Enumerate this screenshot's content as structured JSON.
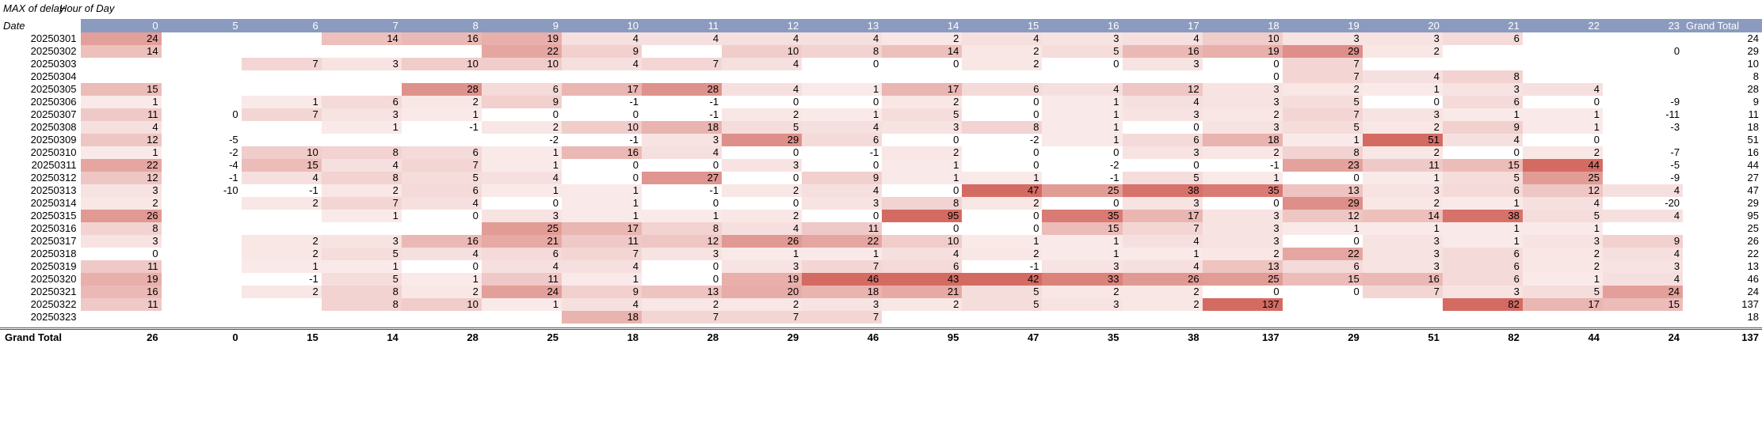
{
  "pivot": {
    "value_label": "MAX of delay",
    "column_label": "Hour of Day",
    "row_label": "Date",
    "grand_total_label": "Grand Total",
    "hours": [
      "0",
      "5",
      "6",
      "7",
      "8",
      "9",
      "10",
      "11",
      "12",
      "13",
      "14",
      "15",
      "16",
      "17",
      "18",
      "19",
      "20",
      "21",
      "22",
      "23"
    ],
    "rows": [
      {
        "date": "20250301",
        "values": [
          24,
          null,
          null,
          14,
          16,
          19,
          4,
          4,
          4,
          4,
          2,
          4,
          3,
          4,
          10,
          3,
          3,
          6,
          null,
          null
        ],
        "total": 24
      },
      {
        "date": "20250302",
        "values": [
          14,
          null,
          null,
          null,
          null,
          22,
          9,
          null,
          10,
          8,
          14,
          2,
          5,
          16,
          19,
          29,
          2,
          null,
          null,
          0
        ],
        "total": 29
      },
      {
        "date": "20250303",
        "values": [
          null,
          null,
          7,
          3,
          10,
          10,
          4,
          7,
          4,
          0,
          0,
          2,
          0,
          3,
          0,
          7,
          null,
          null,
          null,
          null
        ],
        "total": 10
      },
      {
        "date": "20250304",
        "values": [
          null,
          null,
          null,
          null,
          null,
          null,
          null,
          null,
          null,
          null,
          null,
          null,
          null,
          null,
          0,
          7,
          4,
          8,
          null,
          null
        ],
        "total": 8
      },
      {
        "date": "20250305",
        "values": [
          15,
          null,
          null,
          null,
          28,
          6,
          17,
          28,
          4,
          1,
          17,
          6,
          4,
          12,
          3,
          2,
          1,
          3,
          4,
          null
        ],
        "total": 28
      },
      {
        "date": "20250306",
        "values": [
          1,
          null,
          1,
          6,
          2,
          9,
          -1,
          -1,
          0,
          0,
          2,
          0,
          1,
          4,
          3,
          5,
          0,
          6,
          0,
          -9
        ],
        "total": 9
      },
      {
        "date": "20250307",
        "values": [
          11,
          0,
          7,
          3,
          1,
          0,
          0,
          -1,
          2,
          1,
          5,
          0,
          1,
          3,
          2,
          7,
          3,
          1,
          1,
          -11
        ],
        "total": 11
      },
      {
        "date": "20250308",
        "values": [
          4,
          null,
          null,
          1,
          -1,
          2,
          10,
          18,
          5,
          4,
          3,
          8,
          1,
          0,
          3,
          5,
          2,
          9,
          1,
          -3
        ],
        "total": 18
      },
      {
        "date": "20250309",
        "values": [
          12,
          -5,
          null,
          null,
          null,
          -2,
          -1,
          3,
          29,
          6,
          0,
          -2,
          1,
          6,
          18,
          1,
          51,
          4,
          0,
          null
        ],
        "total": 51
      },
      {
        "date": "20250310",
        "values": [
          1,
          -2,
          10,
          8,
          6,
          1,
          16,
          4,
          0,
          -1,
          2,
          0,
          0,
          3,
          2,
          8,
          2,
          0,
          2,
          -7
        ],
        "total": 16
      },
      {
        "date": "20250311",
        "values": [
          22,
          -4,
          15,
          4,
          7,
          1,
          0,
          0,
          3,
          0,
          1,
          0,
          -2,
          0,
          -1,
          23,
          11,
          15,
          44,
          -5
        ],
        "total": 44
      },
      {
        "date": "20250312",
        "values": [
          12,
          -1,
          4,
          8,
          5,
          4,
          0,
          27,
          0,
          9,
          1,
          1,
          -1,
          5,
          1,
          0,
          1,
          5,
          25,
          -9
        ],
        "total": 27
      },
      {
        "date": "20250313",
        "values": [
          3,
          -10,
          -1,
          2,
          6,
          1,
          1,
          -1,
          2,
          4,
          0,
          47,
          25,
          38,
          35,
          13,
          3,
          6,
          12,
          4
        ],
        "total": 47
      },
      {
        "date": "20250314",
        "values": [
          2,
          null,
          2,
          7,
          4,
          0,
          1,
          0,
          0,
          3,
          8,
          2,
          0,
          3,
          0,
          29,
          2,
          1,
          4,
          -20
        ],
        "total": 29
      },
      {
        "date": "20250315",
        "values": [
          26,
          null,
          null,
          1,
          0,
          3,
          1,
          1,
          2,
          0,
          95,
          0,
          35,
          17,
          3,
          12,
          14,
          38,
          5,
          4
        ],
        "total": 95
      },
      {
        "date": "20250316",
        "values": [
          8,
          null,
          null,
          null,
          null,
          25,
          17,
          8,
          4,
          11,
          0,
          0,
          15,
          7,
          3,
          1,
          1,
          1,
          1,
          null
        ],
        "total": 25
      },
      {
        "date": "20250317",
        "values": [
          3,
          null,
          2,
          3,
          16,
          21,
          11,
          12,
          26,
          22,
          10,
          1,
          1,
          4,
          3,
          0,
          3,
          1,
          3,
          9
        ],
        "total": 26
      },
      {
        "date": "20250318",
        "values": [
          0,
          null,
          2,
          5,
          4,
          6,
          7,
          3,
          1,
          1,
          4,
          2,
          1,
          1,
          2,
          22,
          3,
          6,
          2,
          4
        ],
        "total": 22
      },
      {
        "date": "20250319",
        "values": [
          11,
          null,
          1,
          1,
          0,
          4,
          4,
          0,
          3,
          7,
          6,
          -1,
          3,
          4,
          13,
          6,
          3,
          6,
          2,
          3
        ],
        "total": 13
      },
      {
        "date": "20250320",
        "values": [
          19,
          null,
          -1,
          5,
          1,
          11,
          1,
          0,
          19,
          46,
          43,
          42,
          33,
          26,
          25,
          15,
          16,
          6,
          1,
          4
        ],
        "total": 46
      },
      {
        "date": "20250321",
        "values": [
          16,
          null,
          2,
          8,
          2,
          24,
          9,
          13,
          20,
          18,
          21,
          5,
          2,
          2,
          0,
          0,
          7,
          3,
          5,
          24
        ],
        "total": 24
      },
      {
        "date": "20250322",
        "values": [
          11,
          null,
          null,
          8,
          10,
          1,
          4,
          2,
          2,
          3,
          2,
          5,
          3,
          2,
          137,
          null,
          null,
          82,
          17,
          15
        ],
        "total": 137
      },
      {
        "date": "20250323",
        "values": [
          null,
          null,
          null,
          null,
          null,
          null,
          18,
          7,
          7,
          7,
          null,
          null,
          null,
          null,
          null,
          null,
          null,
          null,
          null,
          null
        ],
        "total": 18
      }
    ],
    "grand_total": {
      "values": [
        26,
        0,
        15,
        14,
        28,
        25,
        18,
        28,
        29,
        46,
        95,
        47,
        35,
        38,
        137,
        29,
        51,
        82,
        44,
        24
      ],
      "total": 137
    },
    "colors": {
      "header_bg": "#8a9bbf",
      "heat_low": "#ffffff",
      "heat_high": "#d46b63"
    }
  }
}
